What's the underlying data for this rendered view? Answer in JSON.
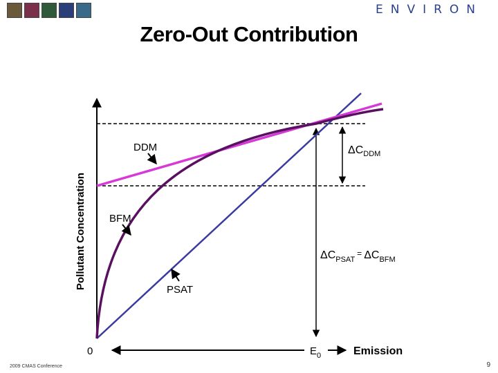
{
  "header": {
    "logos": [
      {
        "name": "logo-1",
        "color": "#6b5a3a"
      },
      {
        "name": "logo-2",
        "color": "#7a2f4a"
      },
      {
        "name": "logo-3",
        "color": "#2f5a3a"
      },
      {
        "name": "logo-4",
        "color": "#2a3f7a"
      },
      {
        "name": "logo-5",
        "color": "#3a6a8a"
      }
    ],
    "brand": "ENVIRON"
  },
  "title": "Zero-Out Contribution",
  "axes": {
    "y_label": "Pollutant Concentration",
    "origin_label": "0",
    "x_label": "Emission",
    "e0_main": "E",
    "e0_sub": "0"
  },
  "labels": {
    "ddm": "DDM",
    "bfm": "BFM",
    "psat": "PSAT",
    "delta_ddm_symbol": "Δ",
    "delta_ddm_main": "C",
    "delta_ddm_sub": "DDM",
    "delta_psat_symbol": "Δ",
    "delta_psat_main": "C",
    "delta_psat_sub": "PSAT",
    "equals": "=",
    "delta_bfm_symbol": "Δ",
    "delta_bfm_main": "C",
    "delta_bfm_sub": "BFM"
  },
  "colors": {
    "ddm_line": "#d63ad6",
    "bfm_curve": "#5a1060",
    "psat_line": "#3a3aa0",
    "axis": "#000000"
  },
  "footer": {
    "conference": "2009 CMAS Conference",
    "page_number": "9"
  }
}
